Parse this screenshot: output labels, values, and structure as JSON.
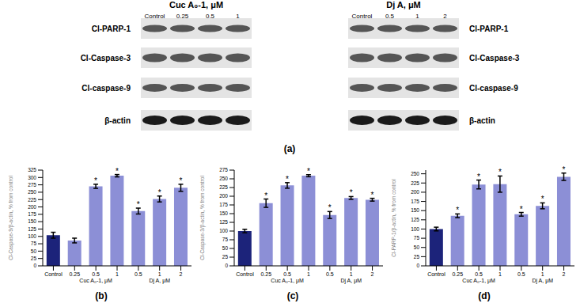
{
  "panel_a": {
    "label": "(a)",
    "blots": [
      {
        "title": "Cuc A₀-1, μM",
        "lanes": [
          "Control",
          "0.25",
          "0.5",
          "1"
        ],
        "rows": [
          "Cl-PARP-1",
          "Cl-Caspase-3",
          "Cl-caspase-9",
          "β-actin"
        ]
      },
      {
        "title": "Dj A, μM",
        "lanes": [
          "Control",
          "0.5",
          "1",
          "2"
        ],
        "rows": [
          "Cl-PARP-1",
          "Cl-Caspase-3",
          "Cl-caspase-9",
          "β-actin"
        ]
      }
    ]
  },
  "chart_data": [
    {
      "type": "bar",
      "title": "(b)",
      "y_label": "Cl-Caspase-9/β-actin, % from control",
      "categories": [
        "Control",
        "0.25",
        "0.5",
        "1",
        "0.5",
        "1",
        "2"
      ],
      "category_groups": [
        null,
        "Cuc A₀-1, μM",
        "Cuc A₀-1, μM",
        "Cuc A₀-1, μM",
        "Dj A, μM",
        "Dj A, μM",
        "Dj A, μM"
      ],
      "values": [
        104,
        86,
        270,
        306,
        186,
        227,
        265
      ],
      "errors": [
        10,
        8,
        7,
        4,
        10,
        10,
        12
      ],
      "annotations": [
        null,
        null,
        "*",
        "*",
        "*",
        "*",
        "*"
      ],
      "colors": [
        "#1c237a",
        "#8c8fd6",
        "#8c8fd6",
        "#8c8fd6",
        "#8c8fd6",
        "#8c8fd6",
        "#8c8fd6"
      ],
      "ylim": [
        0,
        325
      ],
      "yticks": [
        0,
        25,
        50,
        75,
        100,
        125,
        150,
        175,
        200,
        225,
        250,
        275,
        300,
        325
      ]
    },
    {
      "type": "bar",
      "title": "(c)",
      "y_label": "Cl-Caspase-3/β-actin, % from control",
      "categories": [
        "Control",
        "0.25",
        "0.5",
        "1",
        "0.5",
        "1",
        "2"
      ],
      "category_groups": [
        null,
        "Cuc A₀-1, μM",
        "Cuc A₀-1, μM",
        "Cuc A₀-1, μM",
        "Dj A, μM",
        "Dj A, μM",
        "Dj A, μM"
      ],
      "values": [
        100,
        180,
        231,
        259,
        146,
        195,
        190
      ],
      "errors": [
        5,
        12,
        8,
        3,
        10,
        4,
        4
      ],
      "annotations": [
        null,
        "*",
        "*",
        "*",
        "*",
        "*",
        "*"
      ],
      "colors": [
        "#1c237a",
        "#8c8fd6",
        "#8c8fd6",
        "#8c8fd6",
        "#8c8fd6",
        "#8c8fd6",
        "#8c8fd6"
      ],
      "ylim": [
        0,
        275
      ],
      "yticks": [
        0,
        25,
        50,
        75,
        100,
        125,
        150,
        175,
        200,
        225,
        250,
        275
      ]
    },
    {
      "type": "bar",
      "title": "(d)",
      "y_label": "Cl-PARP-1/β-actin, % from control",
      "categories": [
        "Control",
        "0.25",
        "0.5",
        "1",
        "0.5",
        "1",
        "2"
      ],
      "category_groups": [
        null,
        "Cuc A₀-1, μM",
        "Cuc A₀-1, μM",
        "Cuc A₀-1, μM",
        "Dj A, μM",
        "Dj A, μM",
        "Dj A, μM"
      ],
      "values": [
        100,
        136,
        221,
        222,
        140,
        163,
        242
      ],
      "errors": [
        5,
        5,
        12,
        22,
        5,
        8,
        10
      ],
      "annotations": [
        null,
        "*",
        "*",
        "*",
        "*",
        "*",
        "*"
      ],
      "colors": [
        "#1c237a",
        "#8c8fd6",
        "#8c8fd6",
        "#8c8fd6",
        "#8c8fd6",
        "#8c8fd6",
        "#8c8fd6"
      ],
      "ylim": [
        0,
        260
      ],
      "yticks": [
        0,
        25,
        50,
        75,
        100,
        125,
        150,
        175,
        200,
        225,
        250
      ]
    }
  ]
}
